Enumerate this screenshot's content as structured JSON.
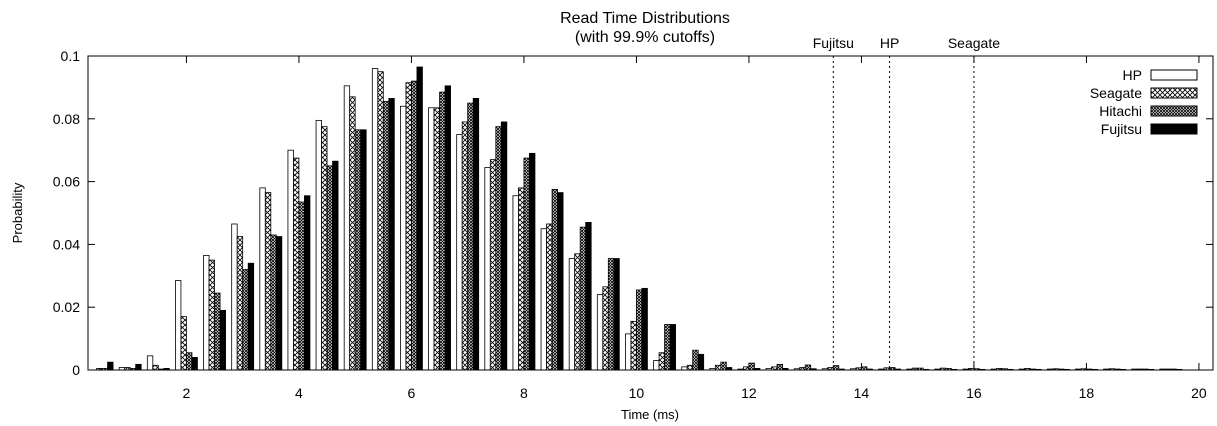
{
  "chart_data": {
    "type": "bar",
    "title": "Read Time Distributions",
    "subtitle": "(with 99.9% cutoffs)",
    "xlabel": "Time (ms)",
    "ylabel": "Probability",
    "xlim": [
      0.25,
      20.25
    ],
    "ylim": [
      0,
      0.1
    ],
    "xticks": [
      "2",
      "4",
      "6",
      "8",
      "10",
      "12",
      "14",
      "16",
      "18",
      "20"
    ],
    "yticks": [
      "0",
      "0.02",
      "0.04",
      "0.06",
      "0.08",
      "0.1"
    ],
    "legend_position": "top-right",
    "bin_width_ms": 0.5,
    "x": [
      0.5,
      1.0,
      1.5,
      2.0,
      2.5,
      3.0,
      3.5,
      4.0,
      4.5,
      5.0,
      5.5,
      6.0,
      6.5,
      7.0,
      7.5,
      8.0,
      8.5,
      9.0,
      9.5,
      10.0,
      10.5,
      11.0,
      11.5,
      12.0,
      12.5,
      13.0,
      13.5,
      14.0,
      14.5,
      15.0,
      15.5,
      16.0,
      16.5,
      17.0,
      17.5,
      18.0,
      18.5,
      19.0,
      19.5
    ],
    "series": [
      {
        "name": "HP",
        "pattern": "white",
        "values": [
          0.0,
          0.0008,
          0.0045,
          0.0285,
          0.0365,
          0.0465,
          0.058,
          0.07,
          0.0795,
          0.0905,
          0.096,
          0.084,
          0.0835,
          0.075,
          0.0645,
          0.0555,
          0.045,
          0.0355,
          0.024,
          0.0115,
          0.003,
          0.001,
          0.0005,
          0.0003,
          0.0005,
          0.0004,
          0.0004,
          0.0004,
          0.0003,
          0.0003,
          0.0003,
          0.0003,
          0.0003,
          0.0003,
          0.0003,
          0.0003,
          0.0003,
          0.0003,
          0.0003
        ]
      },
      {
        "name": "Seagate",
        "pattern": "cross",
        "values": [
          0.0005,
          0.0008,
          0.0015,
          0.017,
          0.035,
          0.0425,
          0.0565,
          0.0675,
          0.0775,
          0.087,
          0.095,
          0.0915,
          0.0835,
          0.079,
          0.067,
          0.058,
          0.0465,
          0.037,
          0.0265,
          0.0155,
          0.0055,
          0.0015,
          0.0015,
          0.001,
          0.001,
          0.0008,
          0.0008,
          0.0007,
          0.0007,
          0.0006,
          0.0006,
          0.0005,
          0.0005,
          0.0005,
          0.0004,
          0.0004,
          0.0004,
          0.0003,
          0.0003
        ]
      },
      {
        "name": "Hitachi",
        "pattern": "fine",
        "values": [
          0.0005,
          0.0005,
          0.0003,
          0.0055,
          0.0245,
          0.032,
          0.043,
          0.0535,
          0.065,
          0.0765,
          0.0855,
          0.092,
          0.0885,
          0.085,
          0.0775,
          0.0675,
          0.0575,
          0.0455,
          0.0355,
          0.0255,
          0.0145,
          0.0063,
          0.0025,
          0.0022,
          0.0018,
          0.0016,
          0.0014,
          0.001,
          0.0008,
          0.0006,
          0.0005,
          0.0004,
          0.0004,
          0.0003,
          0.0003,
          0.0003,
          0.0003,
          0.0003,
          0.0003
        ]
      },
      {
        "name": "Fujitsu",
        "pattern": "black",
        "values": [
          0.0025,
          0.0018,
          0.0005,
          0.004,
          0.019,
          0.034,
          0.0425,
          0.0555,
          0.0665,
          0.0765,
          0.0865,
          0.0965,
          0.0905,
          0.0865,
          0.079,
          0.069,
          0.0565,
          0.047,
          0.0355,
          0.026,
          0.0145,
          0.005,
          0.0008,
          0.0005,
          0.0005,
          0.0004,
          0.0003,
          0.0003,
          0.0003,
          0.0002,
          0.0002,
          0.0002,
          0.0002,
          0.0002,
          0.0002,
          0.0002,
          0.0002,
          0.0002,
          0.0002
        ]
      }
    ],
    "cutoffs": [
      {
        "label": "Fujitsu",
        "x": 13.5
      },
      {
        "label": "HP",
        "x": 14.5
      },
      {
        "label": "Seagate",
        "x": 16.0
      }
    ]
  }
}
